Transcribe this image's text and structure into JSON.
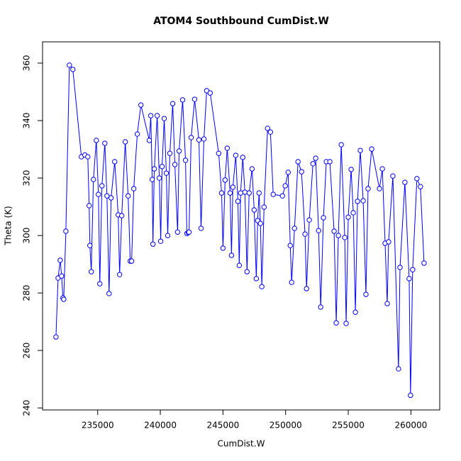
{
  "chart_data": {
    "type": "line",
    "title": "ATOM4 Southbound CumDist.W",
    "x_label": "CumDist.W",
    "y_label": "Theta (K)",
    "color": "#0000ff",
    "markers": true,
    "x": [
      231670,
      231840,
      232010,
      232120,
      232230,
      232290,
      232460,
      232740,
      233020,
      233700,
      233980,
      234210,
      234320,
      234380,
      234490,
      234660,
      234890,
      235060,
      235170,
      235340,
      235570,
      235740,
      235910,
      236070,
      236360,
      236640,
      236750,
      236920,
      237200,
      237430,
      237600,
      237710,
      237880,
      238160,
      238450,
      239120,
      239240,
      239350,
      239410,
      239520,
      239750,
      239920,
      240030,
      240140,
      240310,
      240480,
      240590,
      240760,
      240990,
      241160,
      241380,
      241500,
      241780,
      242010,
      242120,
      242230,
      242290,
      242460,
      242740,
      243080,
      243250,
      243480,
      243700,
      243980,
      244660,
      244890,
      245000,
      245170,
      245340,
      245570,
      245680,
      245790,
      246020,
      246190,
      246300,
      246410,
      246580,
      246750,
      246920,
      247090,
      247320,
      247490,
      247660,
      247770,
      247880,
      247990,
      248100,
      248280,
      248560,
      248790,
      249010,
      249750,
      249970,
      250200,
      250370,
      250480,
      250710,
      250990,
      251270,
      251550,
      251670,
      251890,
      252180,
      252400,
      252630,
      252800,
      253020,
      253250,
      253530,
      253870,
      254040,
      254210,
      254440,
      254720,
      254830,
      255000,
      255230,
      255400,
      255570,
      255740,
      255960,
      256190,
      256410,
      256580,
      256870,
      257490,
      257720,
      257940,
      258110,
      258220,
      258560,
      259010,
      259130,
      259520,
      259860,
      259970,
      260140,
      260480,
      260760,
      261050
    ],
    "values": [
      264.7,
      285.2,
      291.4,
      285.9,
      278.3,
      277.8,
      301.5,
      359.3,
      357.8,
      327.4,
      328,
      327.4,
      310.4,
      296.5,
      287.4,
      319.5,
      333.1,
      314.3,
      283.2,
      317.3,
      332.1,
      313.8,
      279.8,
      313.1,
      325.7,
      307.2,
      286.4,
      306.9,
      332.6,
      313.8,
      291.1,
      291.1,
      316.3,
      335.3,
      345.4,
      333.1,
      341.7,
      319.5,
      297,
      323.2,
      341.7,
      320,
      298,
      324,
      340.7,
      321.7,
      300,
      328.6,
      345.9,
      324.7,
      301.2,
      329.4,
      347.2,
      326.2,
      300.7,
      301,
      301.2,
      334.1,
      347.4,
      333.3,
      302.5,
      333.6,
      350.4,
      349.6,
      328.6,
      314.8,
      295.6,
      319.3,
      330.4,
      314.8,
      293.1,
      316.8,
      327.9,
      311.9,
      289.6,
      314.8,
      327.2,
      315.1,
      287.4,
      314.8,
      323.2,
      308.9,
      285,
      305.2,
      314.8,
      304.2,
      282.2,
      309.9,
      337.3,
      336,
      314.3,
      313.8,
      317.3,
      322,
      296.5,
      283.7,
      302.5,
      325.7,
      322.2,
      300.5,
      281.5,
      305.4,
      325,
      326.9,
      301.7,
      275.1,
      306.2,
      325.7,
      325.7,
      301.5,
      269.6,
      300,
      331.6,
      299.3,
      269.4,
      306.4,
      323,
      307.9,
      273.3,
      311.9,
      329.6,
      312.1,
      279.5,
      316.3,
      330.1,
      316.3,
      323.2,
      297.3,
      276.3,
      297.8,
      320.7,
      253.6,
      288.9,
      318.5,
      285,
      244.4,
      288.1,
      319.8,
      317,
      290.4
    ],
    "xlim": [
      230600,
      262300
    ],
    "ylim": [
      239.3,
      367.4
    ],
    "xticks": [
      235000,
      240000,
      245000,
      250000,
      255000,
      260000
    ],
    "yticks": [
      240,
      260,
      280,
      300,
      320,
      340,
      360
    ]
  }
}
